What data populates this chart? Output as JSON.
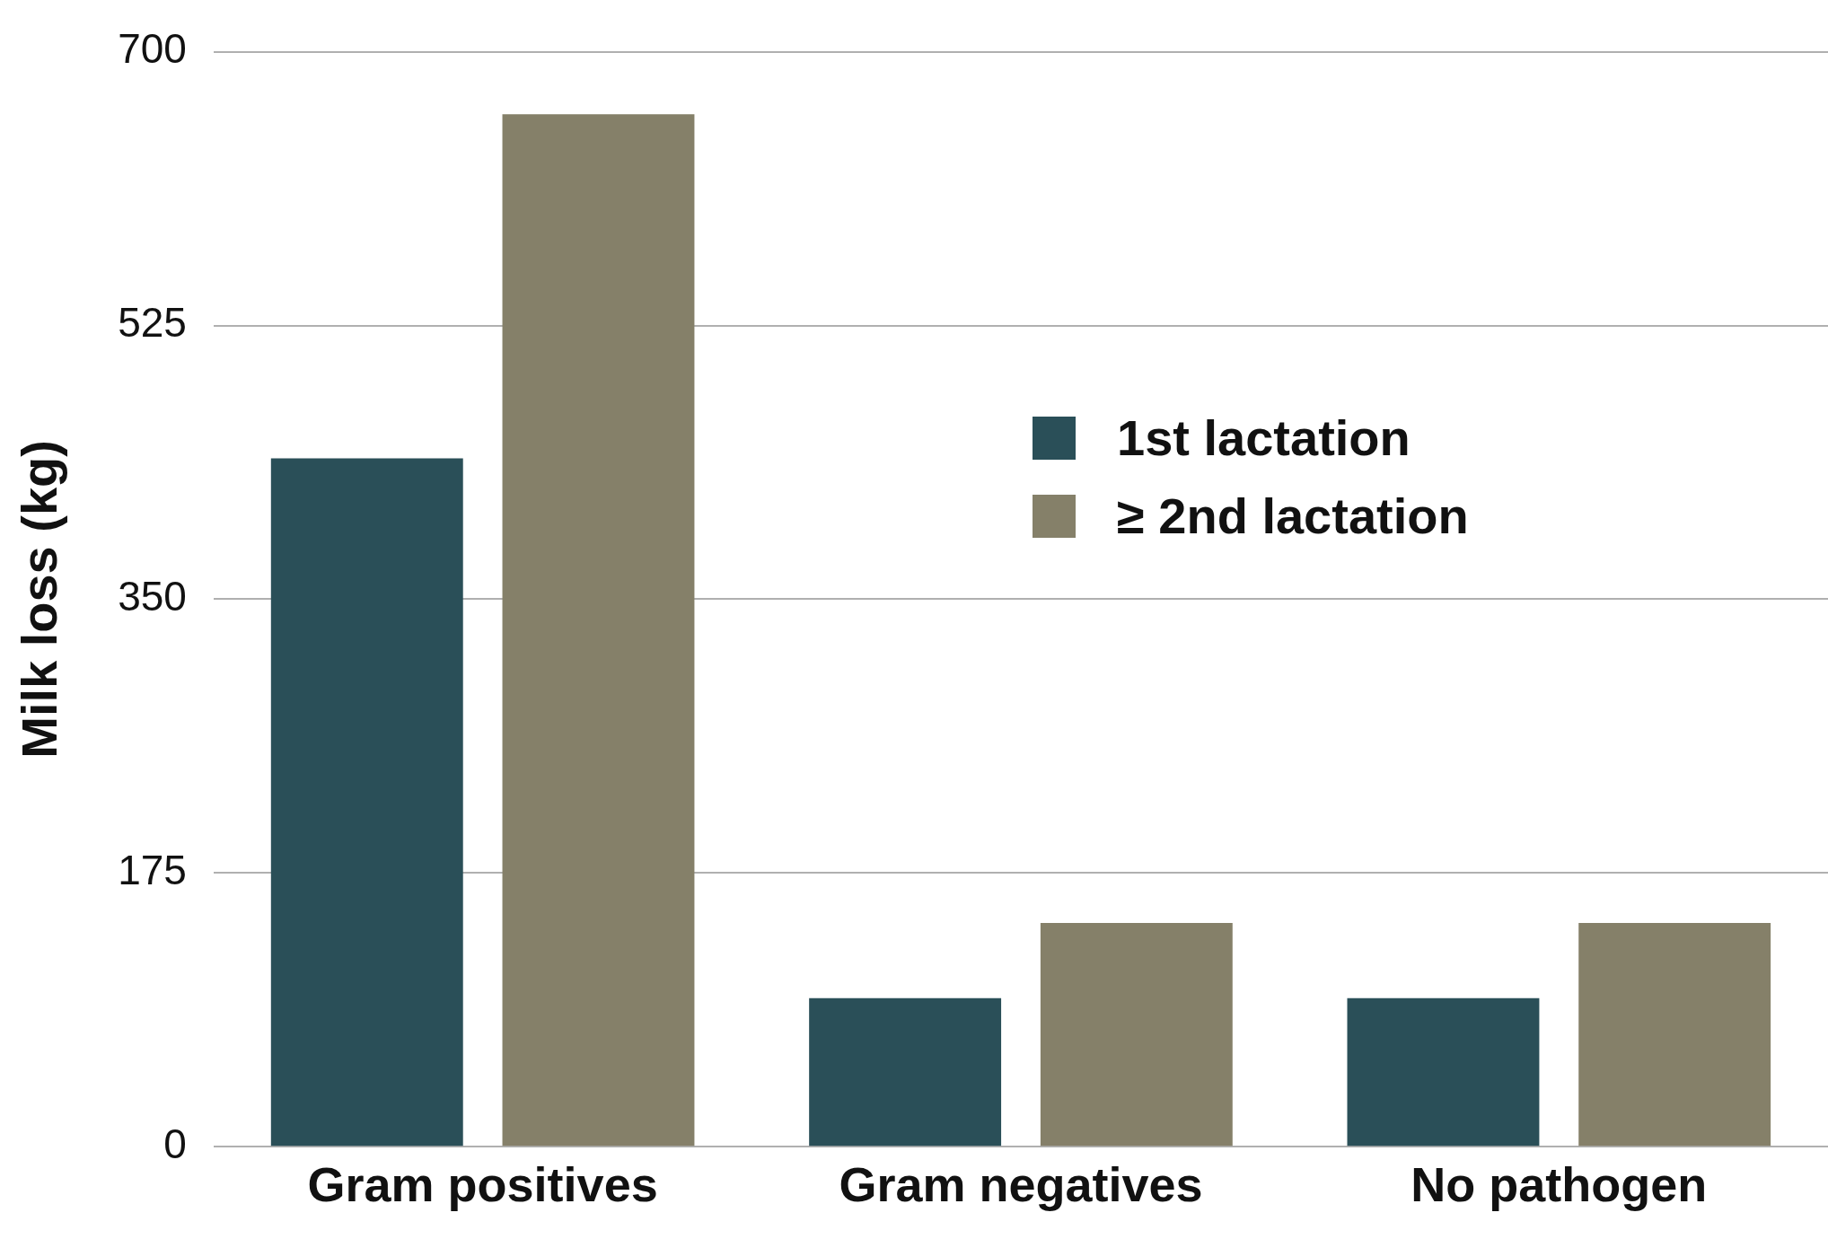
{
  "chart_data": {
    "type": "bar",
    "ylabel": "Milk loss (kg)",
    "categories": [
      "Gram positives",
      "Gram negatives",
      "No pathogen"
    ],
    "series": [
      {
        "name": "1st lactation",
        "color": "#2a4f58",
        "values": [
          440,
          95,
          95
        ]
      },
      {
        "name": "≥ 2nd lactation",
        "color": "#858069",
        "values": [
          660,
          143,
          143
        ]
      }
    ],
    "ylim": [
      0,
      700
    ],
    "yticks": [
      0,
      175,
      350,
      525,
      700
    ],
    "grid": "y",
    "legend": "right"
  }
}
